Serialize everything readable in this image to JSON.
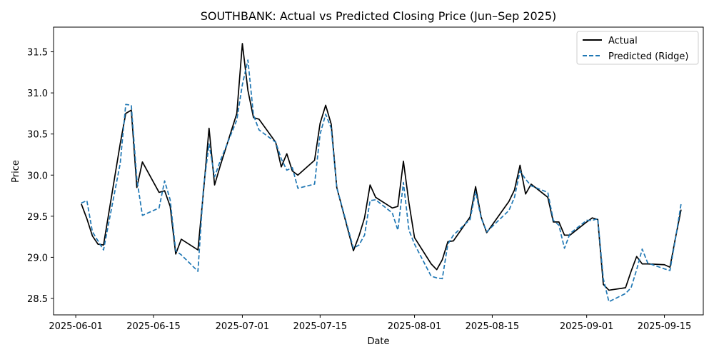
{
  "chart_data": {
    "type": "line",
    "title": "SOUTHBANK: Actual vs Predicted Closing Price (Jun–Sep 2025)",
    "xlabel": "Date",
    "ylabel": "Price",
    "xlim": [
      "2025-05-28",
      "2025-09-22"
    ],
    "ylim": [
      28.3,
      31.8
    ],
    "x_ticks": [
      "2025-06-01",
      "2025-06-15",
      "2025-07-01",
      "2025-07-15",
      "2025-08-01",
      "2025-08-15",
      "2025-09-01",
      "2025-09-15"
    ],
    "y_ticks": [
      28.5,
      29.0,
      29.5,
      30.0,
      30.5,
      31.0,
      31.5
    ],
    "y_tick_labels": [
      "28.5",
      "29.0",
      "29.5",
      "30.0",
      "30.5",
      "31.0",
      "31.5"
    ],
    "grid": false,
    "legend_position": "top-right",
    "x": [
      "2025-06-02",
      "2025-06-03",
      "2025-06-04",
      "2025-06-05",
      "2025-06-06",
      "2025-06-09",
      "2025-06-10",
      "2025-06-11",
      "2025-06-12",
      "2025-06-13",
      "2025-06-16",
      "2025-06-17",
      "2025-06-18",
      "2025-06-19",
      "2025-06-20",
      "2025-06-23",
      "2025-06-24",
      "2025-06-25",
      "2025-06-26",
      "2025-06-27",
      "2025-06-30",
      "2025-07-01",
      "2025-07-02",
      "2025-07-03",
      "2025-07-04",
      "2025-07-07",
      "2025-07-08",
      "2025-07-09",
      "2025-07-10",
      "2025-07-11",
      "2025-07-14",
      "2025-07-15",
      "2025-07-16",
      "2025-07-17",
      "2025-07-18",
      "2025-07-21",
      "2025-07-22",
      "2025-07-23",
      "2025-07-24",
      "2025-07-25",
      "2025-07-28",
      "2025-07-29",
      "2025-07-30",
      "2025-07-31",
      "2025-08-01",
      "2025-08-04",
      "2025-08-05",
      "2025-08-06",
      "2025-08-07",
      "2025-08-08",
      "2025-08-11",
      "2025-08-12",
      "2025-08-13",
      "2025-08-14",
      "2025-08-18",
      "2025-08-19",
      "2025-08-20",
      "2025-08-21",
      "2025-08-22",
      "2025-08-25",
      "2025-08-26",
      "2025-08-27",
      "2025-08-28",
      "2025-08-29",
      "2025-09-01",
      "2025-09-02",
      "2025-09-03",
      "2025-09-04",
      "2025-09-05",
      "2025-09-08",
      "2025-09-09",
      "2025-09-10",
      "2025-09-11",
      "2025-09-12",
      "2025-09-15",
      "2025-09-16",
      "2025-09-17",
      "2025-09-18"
    ],
    "series": [
      {
        "name": "Actual",
        "color": "#000000",
        "style": "solid",
        "values": [
          29.65,
          29.47,
          29.26,
          29.16,
          29.15,
          30.38,
          30.75,
          30.79,
          29.85,
          30.16,
          29.79,
          29.81,
          29.62,
          29.04,
          29.22,
          29.09,
          29.8,
          30.57,
          29.88,
          30.11,
          30.75,
          31.6,
          31.03,
          30.7,
          30.68,
          30.4,
          30.1,
          30.26,
          30.05,
          30.0,
          30.18,
          30.63,
          30.85,
          30.62,
          29.85,
          29.08,
          29.26,
          29.48,
          29.88,
          29.73,
          29.6,
          29.62,
          30.17,
          29.66,
          29.24,
          28.92,
          28.85,
          28.97,
          29.19,
          29.2,
          29.49,
          29.86,
          29.49,
          29.3,
          29.68,
          29.82,
          30.12,
          29.77,
          29.89,
          29.73,
          29.43,
          29.43,
          29.27,
          29.27,
          29.43,
          29.48,
          29.46,
          28.67,
          28.6,
          28.63,
          28.83,
          29.01,
          28.92,
          28.92,
          28.91,
          28.88,
          29.24,
          29.58
        ]
      },
      {
        "name": "Predicted (Ridge)",
        "color": "#1f77b4",
        "style": "dashed",
        "values": [
          29.66,
          29.69,
          29.31,
          29.2,
          29.09,
          30.14,
          30.86,
          30.85,
          29.95,
          29.51,
          29.6,
          29.93,
          29.7,
          29.08,
          29.03,
          28.83,
          29.85,
          30.38,
          29.98,
          30.17,
          30.67,
          31.1,
          31.4,
          30.73,
          30.55,
          30.4,
          30.2,
          30.06,
          30.09,
          29.84,
          29.89,
          30.5,
          30.74,
          30.57,
          29.85,
          29.11,
          29.15,
          29.27,
          29.69,
          29.7,
          29.54,
          29.33,
          29.91,
          29.33,
          29.16,
          28.77,
          28.75,
          28.74,
          29.16,
          29.27,
          29.46,
          29.8,
          29.48,
          29.31,
          29.57,
          29.73,
          30.05,
          29.95,
          29.87,
          29.79,
          29.45,
          29.39,
          29.11,
          29.29,
          29.45,
          29.45,
          29.47,
          28.74,
          28.46,
          28.56,
          28.63,
          28.85,
          29.1,
          28.93,
          28.86,
          28.84,
          29.23,
          29.65
        ]
      }
    ]
  }
}
